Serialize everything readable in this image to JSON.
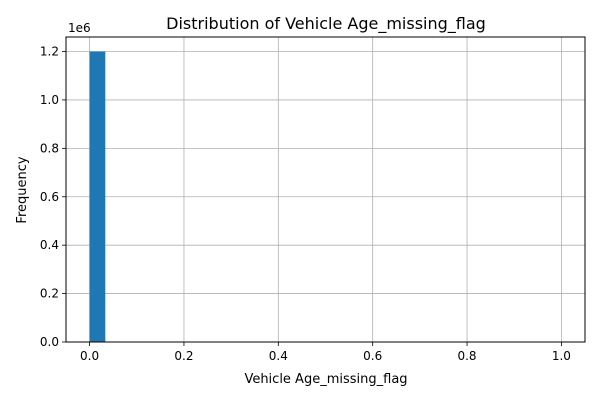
{
  "chart_data": {
    "type": "bar",
    "title": "Distribution of Vehicle Age_missing_flag",
    "xlabel": "Vehicle Age_missing_flag",
    "ylabel": "Frequency",
    "y_offset_text": "1e6",
    "xlim": [
      -0.05,
      1.05
    ],
    "ylim": [
      0,
      1.26
    ],
    "x_ticks": [
      "0.0",
      "0.2",
      "0.4",
      "0.6",
      "0.8",
      "1.0"
    ],
    "x_tick_values": [
      0.0,
      0.2,
      0.4,
      0.6,
      0.8,
      1.0
    ],
    "y_ticks": [
      "0.0",
      "0.2",
      "0.4",
      "0.6",
      "0.8",
      "1.0",
      "1.2"
    ],
    "y_tick_values": [
      0.0,
      0.2,
      0.4,
      0.6,
      0.8,
      1.0,
      1.2
    ],
    "bins": [
      {
        "x0": 0.0,
        "x1": 0.0333,
        "value": 1.2
      }
    ],
    "bar_color": "#1f77b4",
    "grid": true
  }
}
